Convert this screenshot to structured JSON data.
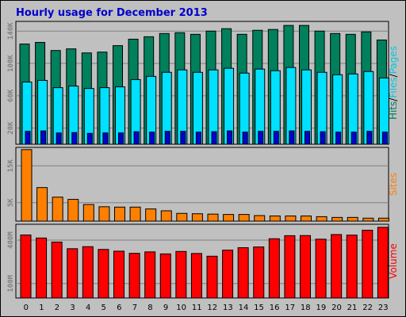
{
  "title": "Hourly usage for December 2013",
  "colors": {
    "hits": "#00805c",
    "files": "#00e0ff",
    "pages": "#0000d8",
    "sites": "#ff8000",
    "volume": "#ff0000",
    "panel_bg": "#c0c0c0",
    "title": "#0000cc"
  },
  "chart_data": [
    {
      "type": "bar",
      "name": "pages-files-hits",
      "categories": [
        "0",
        "1",
        "2",
        "3",
        "4",
        "5",
        "6",
        "7",
        "8",
        "9",
        "10",
        "11",
        "12",
        "13",
        "14",
        "15",
        "16",
        "17",
        "18",
        "19",
        "20",
        "21",
        "22",
        "23"
      ],
      "series": [
        {
          "name": "Hits",
          "values": [
            124000,
            126000,
            116000,
            118000,
            113000,
            114000,
            122000,
            130000,
            133000,
            137000,
            138000,
            136000,
            140000,
            143000,
            136000,
            141000,
            142000,
            147000,
            147000,
            140000,
            137000,
            136000,
            139000,
            129000
          ]
        },
        {
          "name": "Files",
          "values": [
            77000,
            79000,
            70000,
            72000,
            69000,
            70000,
            71000,
            80000,
            84000,
            89000,
            92000,
            89000,
            92000,
            94000,
            88000,
            93000,
            91000,
            95000,
            92000,
            89000,
            86000,
            87000,
            90000,
            82000
          ]
        },
        {
          "name": "Pages",
          "values": [
            16000,
            16500,
            14000,
            14500,
            13500,
            14000,
            14000,
            15500,
            15000,
            16000,
            16000,
            15000,
            15500,
            16500,
            15000,
            16000,
            16000,
            16500,
            16000,
            15500,
            15000,
            15000,
            16000,
            15000
          ]
        }
      ],
      "yticks": [
        {
          "v": 20000,
          "t": "20K"
        },
        {
          "v": 60000,
          "t": "60K"
        },
        {
          "v": 100000,
          "t": "100K"
        },
        {
          "v": 140000,
          "t": "140K"
        }
      ],
      "ylim": [
        0,
        152000
      ],
      "legend": [
        {
          "text": "Hits",
          "color": "#00805c"
        },
        {
          "text": "/",
          "color": "#000000"
        },
        {
          "text": "Files",
          "color": "#00c8e0"
        },
        {
          "text": "/",
          "color": "#000000"
        },
        {
          "text": "Pages",
          "color": "#00c8e0"
        }
      ]
    },
    {
      "type": "bar",
      "name": "sites",
      "categories": [
        "0",
        "1",
        "2",
        "3",
        "4",
        "5",
        "6",
        "7",
        "8",
        "9",
        "10",
        "11",
        "12",
        "13",
        "14",
        "15",
        "16",
        "17",
        "18",
        "19",
        "20",
        "21",
        "22",
        "23"
      ],
      "series": [
        {
          "name": "Sites",
          "values": [
            19400,
            9100,
            6500,
            5900,
            4500,
            3900,
            3800,
            3800,
            3300,
            2800,
            2100,
            2000,
            1900,
            1800,
            1800,
            1500,
            1400,
            1400,
            1400,
            1200,
            1000,
            1000,
            800,
            800
          ]
        }
      ],
      "yticks": [
        {
          "v": 5000,
          "t": "5K"
        },
        {
          "v": 15000,
          "t": "15K"
        }
      ],
      "ylim": [
        0,
        20000
      ],
      "legend": [
        {
          "text": "Sites",
          "color": "#ff8000"
        }
      ]
    },
    {
      "type": "bar",
      "name": "volume",
      "categories": [
        "0",
        "1",
        "2",
        "3",
        "4",
        "5",
        "6",
        "7",
        "8",
        "9",
        "10",
        "11",
        "12",
        "13",
        "14",
        "15",
        "16",
        "17",
        "18",
        "19",
        "20",
        "21",
        "22",
        "23"
      ],
      "series": [
        {
          "name": "Volume",
          "values": [
            436,
            415,
            387,
            341,
            355,
            336,
            324,
            309,
            319,
            305,
            322,
            308,
            289,
            331,
            348,
            353,
            410,
            431,
            432,
            407,
            439,
            435,
            469,
            489
          ]
        }
      ],
      "yticks": [
        {
          "v": 100,
          "t": "100M"
        },
        {
          "v": 400,
          "t": "400M"
        }
      ],
      "ylim": [
        0,
        510
      ],
      "legend": [
        {
          "text": "Volume",
          "color": "#ff0000"
        }
      ]
    }
  ]
}
